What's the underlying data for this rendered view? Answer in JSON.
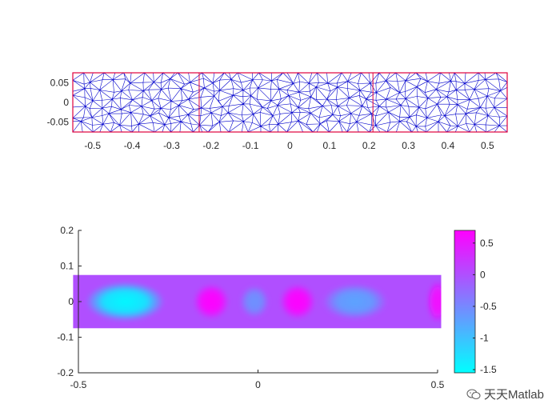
{
  "chart_data": [
    {
      "type": "mesh",
      "xlim": [
        -0.55,
        0.55
      ],
      "ylim": [
        -0.075,
        0.075
      ],
      "xticks": [
        -0.5,
        -0.4,
        -0.3,
        -0.2,
        -0.1,
        0,
        0.1,
        0.2,
        0.3,
        0.4,
        0.5
      ],
      "xtick_labels": [
        "-0.5",
        "-0.4",
        "-0.3",
        "-0.2",
        "-0.1",
        "0",
        "0.1",
        "0.2",
        "0.3",
        "0.4",
        "0.5"
      ],
      "yticks": [
        0.05,
        0,
        -0.05
      ],
      "ytick_labels": [
        "0.05",
        "0",
        "-0.05"
      ],
      "domain_x": [
        -0.55,
        0.55
      ],
      "domain_y": [
        -0.075,
        0.075
      ],
      "interfaces_x": [
        -0.23,
        0.21
      ],
      "mesh_color": "#0000cc",
      "boundary_color": "#e0003c"
    },
    {
      "type": "heatmap",
      "xlim": [
        -0.5,
        0.5
      ],
      "ylim": [
        -0.2,
        0.2
      ],
      "xticks": [
        -0.5,
        0,
        0.5
      ],
      "xtick_labels": [
        "-0.5",
        "0",
        "0.5"
      ],
      "yticks": [
        0.2,
        0.1,
        0,
        -0.1,
        -0.2
      ],
      "ytick_labels": [
        "0.2",
        "0.1",
        "0",
        "-0.1",
        "-0.2"
      ],
      "domain_x": [
        -0.515,
        0.51
      ],
      "domain_y": [
        -0.075,
        0.075
      ],
      "field_blobs": [
        {
          "x": -0.37,
          "y": 0,
          "value": -1.5,
          "wx": 0.11,
          "wy": 0.055
        },
        {
          "x": -0.13,
          "y": 0,
          "value": 0.7,
          "wx": 0.05,
          "wy": 0.05
        },
        {
          "x": -0.01,
          "y": 0,
          "value": -0.6,
          "wx": 0.04,
          "wy": 0.045
        },
        {
          "x": 0.11,
          "y": 0,
          "value": 0.7,
          "wx": 0.05,
          "wy": 0.05
        },
        {
          "x": 0.27,
          "y": 0,
          "value": -0.75,
          "wx": 0.09,
          "wy": 0.05
        },
        {
          "x": 0.5,
          "y": 0,
          "value": 0.6,
          "wx": 0.03,
          "wy": 0.06
        }
      ],
      "background_value": 0.0,
      "colormap": "cool",
      "colorbar": {
        "range": [
          -1.55,
          0.7
        ],
        "ticks": [
          0.5,
          0,
          -0.5,
          -1,
          -1.5
        ],
        "tick_labels": [
          "0.5",
          "0",
          "-0.5",
          "-1",
          "-1.5"
        ],
        "low_color": "#00ffff",
        "high_color": "#ff00ff"
      }
    }
  ],
  "watermark": {
    "text": "天天Matlab",
    "icon": "wechat-icon"
  }
}
